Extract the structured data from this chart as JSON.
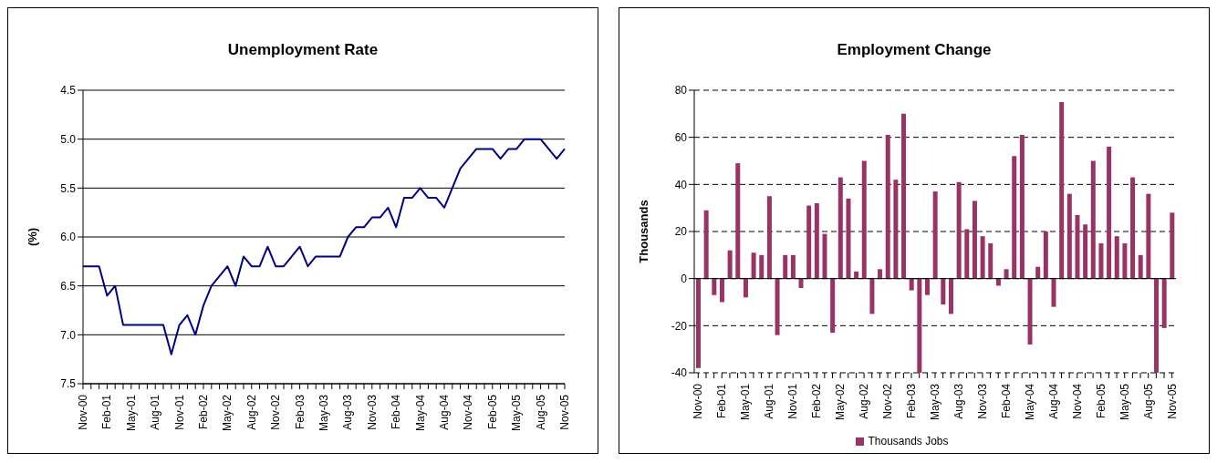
{
  "chart_data": [
    {
      "type": "line",
      "title": "Unemployment Rate",
      "ylabel": "(%)",
      "categories": [
        "Nov-00",
        null,
        null,
        "Feb-01",
        null,
        null,
        "May-01",
        null,
        null,
        "Aug-01",
        null,
        null,
        "Nov-01",
        null,
        null,
        "Feb-02",
        null,
        null,
        "May-02",
        null,
        null,
        "Aug-02",
        null,
        null,
        "Nov-02",
        null,
        null,
        "Feb-03",
        null,
        null,
        "May-03",
        null,
        null,
        "Aug-03",
        null,
        null,
        "Nov-03",
        null,
        null,
        "Feb-04",
        null,
        null,
        "May-04",
        null,
        null,
        "Aug-04",
        null,
        null,
        "Nov-04",
        null,
        null,
        "Feb-05",
        null,
        null,
        "May-05",
        null,
        null,
        "Aug-05",
        null,
        null,
        "Nov-05"
      ],
      "series": [
        {
          "color": "#000080",
          "values": [
            6.3,
            6.3,
            6.3,
            6.6,
            6.5,
            6.9,
            6.9,
            6.9,
            6.9,
            6.9,
            6.9,
            7.2,
            6.9,
            6.8,
            7.0,
            6.7,
            6.5,
            6.4,
            6.3,
            6.5,
            6.2,
            6.3,
            6.3,
            6.1,
            6.3,
            6.3,
            6.2,
            6.1,
            6.3,
            6.2,
            6.2,
            6.2,
            6.2,
            6.0,
            5.9,
            5.9,
            5.8,
            5.8,
            5.7,
            5.9,
            5.6,
            5.6,
            5.5,
            5.6,
            5.6,
            5.7,
            5.5,
            5.3,
            5.2,
            5.1,
            5.1,
            5.1,
            5.2,
            5.1,
            5.1,
            5.0,
            5.0,
            5.0,
            5.1,
            5.2,
            5.1
          ]
        }
      ],
      "ylim": [
        7.5,
        4.5
      ],
      "yticks": [
        {
          "value": 4.5,
          "label": "4.5"
        },
        {
          "value": 5,
          "label": "5.0"
        },
        {
          "value": 5.5,
          "label": "5.5"
        },
        {
          "value": 6,
          "label": "6.0"
        },
        {
          "value": 6.5,
          "label": "6.5"
        },
        {
          "value": 7,
          "label": "7.0"
        },
        {
          "value": 7.5,
          "label": "7.5"
        }
      ],
      "grid": "y",
      "marker": "none",
      "line_style": "solid"
    },
    {
      "type": "bar",
      "title": "Employment Change",
      "ylabel": "Thousands",
      "categories": [
        "Nov-00",
        null,
        null,
        "Feb-01",
        null,
        null,
        "May-01",
        null,
        null,
        "Aug-01",
        null,
        null,
        "Nov-01",
        null,
        null,
        "Feb-02",
        null,
        null,
        "May-02",
        null,
        null,
        "Aug-02",
        null,
        null,
        "Nov-02",
        null,
        null,
        "Feb-03",
        null,
        null,
        "May-03",
        null,
        null,
        "Aug-03",
        null,
        null,
        "Nov-03",
        null,
        null,
        "Feb-04",
        null,
        null,
        "May-04",
        null,
        null,
        "Aug-04",
        null,
        null,
        "Nov-04",
        null,
        null,
        "Feb-05",
        null,
        null,
        "May-05",
        null,
        null,
        "Aug-05",
        null,
        null,
        "Nov-05"
      ],
      "series": [
        {
          "name": "Thousands Jobs",
          "color": "#993366",
          "values": [
            -38,
            29,
            -7,
            -10,
            12,
            49,
            -8,
            11,
            10,
            35,
            -24,
            10,
            10,
            -4,
            31,
            32,
            19,
            -23,
            43,
            34,
            3,
            50,
            -15,
            4,
            61,
            42,
            70,
            -5,
            -40,
            -7,
            37,
            -11,
            -15,
            41,
            21,
            33,
            18,
            15,
            -3,
            4,
            52,
            61,
            -28,
            5,
            20,
            -12,
            75,
            36,
            27,
            23,
            50,
            15,
            56,
            18,
            15,
            43,
            10,
            36,
            -40,
            -21,
            28
          ]
        }
      ],
      "ylim": [
        -40,
        80
      ],
      "yticks": [
        -40,
        -20,
        0,
        20,
        40,
        60,
        80
      ],
      "grid": "y",
      "legend": "bottom"
    }
  ]
}
